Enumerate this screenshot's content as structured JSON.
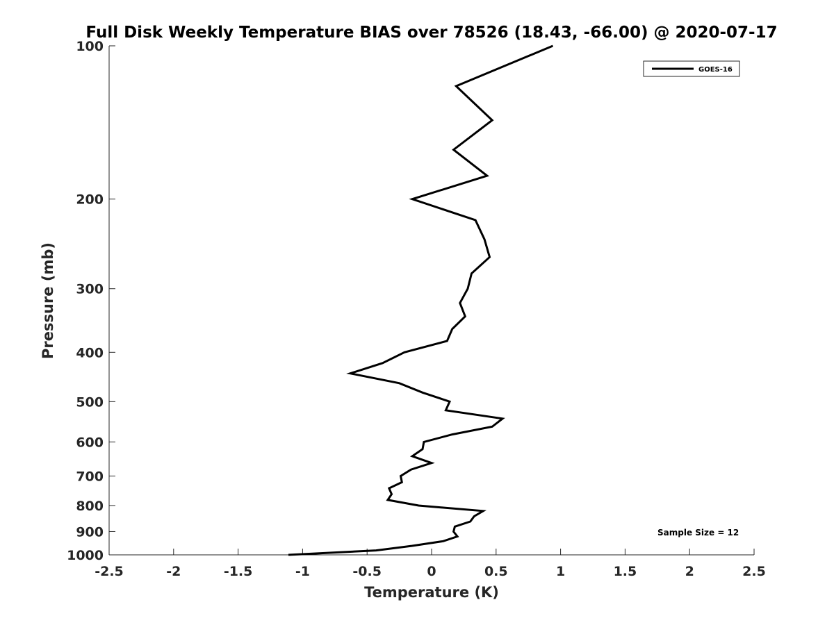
{
  "chart_data": {
    "type": "line",
    "title": "Full Disk Weekly Temperature BIAS over 78526 (18.43, -66.00) @ 2020-07-17",
    "xlabel": "Temperature (K)",
    "ylabel": "Pressure (mb)",
    "xlim": [
      -2.5,
      2.5
    ],
    "ylim": [
      100,
      1000
    ],
    "y_scale": "log",
    "y_reversed": true,
    "x_ticks": [
      -2.5,
      -2,
      -1.5,
      -1,
      -0.5,
      0,
      0.5,
      1,
      1.5,
      2,
      2.5
    ],
    "x_tick_labels": [
      "-2.5",
      "-2",
      "-1.5",
      "-1",
      "-0.5",
      "0",
      "0.5",
      "1",
      "1.5",
      "2",
      "2.5"
    ],
    "y_ticks": [
      100,
      200,
      300,
      400,
      500,
      600,
      700,
      800,
      900,
      1000
    ],
    "y_tick_labels": [
      "100",
      "200",
      "300",
      "400",
      "500",
      "600",
      "700",
      "800",
      "900",
      "1000"
    ],
    "grid": false,
    "legend_position": "top-right",
    "annotation": "Sample Size = 12",
    "line_color": "#000000",
    "series": [
      {
        "name": "GOES-16",
        "points": [
          {
            "x": 0.94,
            "p": 100
          },
          {
            "x": 0.19,
            "p": 120
          },
          {
            "x": 0.47,
            "p": 140
          },
          {
            "x": 0.17,
            "p": 160
          },
          {
            "x": 0.43,
            "p": 180
          },
          {
            "x": -0.15,
            "p": 200
          },
          {
            "x": 0.34,
            "p": 220
          },
          {
            "x": 0.41,
            "p": 240
          },
          {
            "x": 0.45,
            "p": 260
          },
          {
            "x": 0.31,
            "p": 280
          },
          {
            "x": 0.28,
            "p": 300
          },
          {
            "x": 0.22,
            "p": 320
          },
          {
            "x": 0.26,
            "p": 340
          },
          {
            "x": 0.16,
            "p": 360
          },
          {
            "x": 0.12,
            "p": 380
          },
          {
            "x": -0.21,
            "p": 400
          },
          {
            "x": -0.38,
            "p": 420
          },
          {
            "x": -0.63,
            "p": 440
          },
          {
            "x": -0.25,
            "p": 460
          },
          {
            "x": -0.07,
            "p": 480
          },
          {
            "x": 0.14,
            "p": 500
          },
          {
            "x": 0.11,
            "p": 520
          },
          {
            "x": 0.55,
            "p": 540
          },
          {
            "x": 0.47,
            "p": 560
          },
          {
            "x": 0.16,
            "p": 580
          },
          {
            "x": -0.06,
            "p": 600
          },
          {
            "x": -0.07,
            "p": 620
          },
          {
            "x": -0.15,
            "p": 640
          },
          {
            "x": 0.0,
            "p": 660
          },
          {
            "x": -0.16,
            "p": 680
          },
          {
            "x": -0.24,
            "p": 700
          },
          {
            "x": -0.23,
            "p": 720
          },
          {
            "x": -0.33,
            "p": 740
          },
          {
            "x": -0.31,
            "p": 760
          },
          {
            "x": -0.34,
            "p": 780
          },
          {
            "x": -0.1,
            "p": 800
          },
          {
            "x": 0.4,
            "p": 820
          },
          {
            "x": 0.33,
            "p": 840
          },
          {
            "x": 0.3,
            "p": 860
          },
          {
            "x": 0.18,
            "p": 880
          },
          {
            "x": 0.17,
            "p": 900
          },
          {
            "x": 0.2,
            "p": 920
          },
          {
            "x": 0.09,
            "p": 940
          },
          {
            "x": -0.15,
            "p": 960
          },
          {
            "x": -0.43,
            "p": 980
          },
          {
            "x": -1.11,
            "p": 1000
          }
        ]
      }
    ]
  }
}
